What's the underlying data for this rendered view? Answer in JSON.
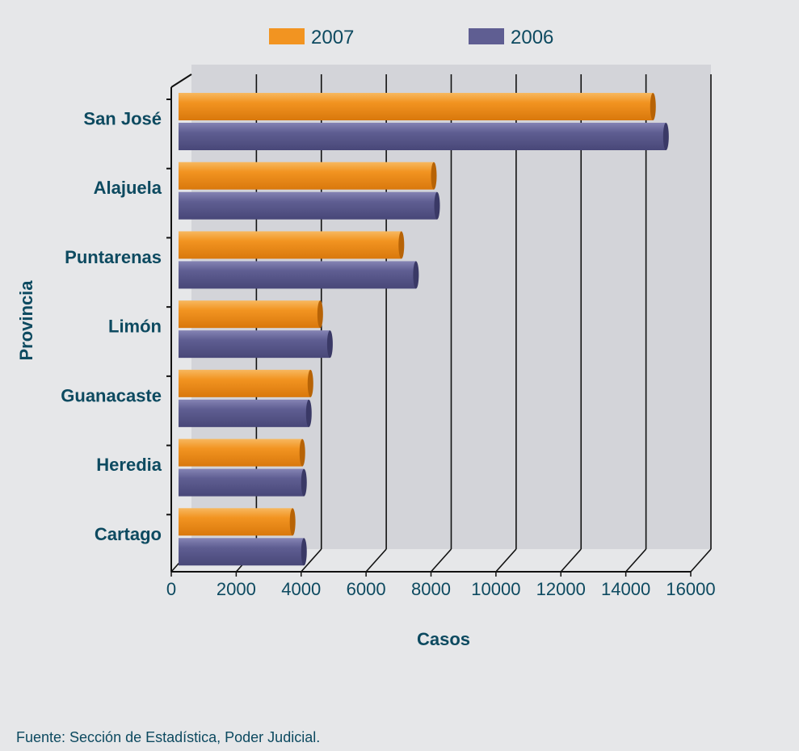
{
  "chart_data": {
    "type": "bar",
    "orientation": "horizontal",
    "categories": [
      "San José",
      "Alajuela",
      "Puntarenas",
      "Limón",
      "Guanacaste",
      "Heredia",
      "Cartago"
    ],
    "series": [
      {
        "name": "2007",
        "color": "#f29421",
        "values": [
          14700,
          7950,
          6950,
          4450,
          4150,
          3900,
          3600
        ]
      },
      {
        "name": "2006",
        "color": "#5f5e92",
        "values": [
          15100,
          8050,
          7400,
          4750,
          4100,
          3950,
          3950
        ]
      }
    ],
    "xlabel": "Casos",
    "ylabel": "Provincia",
    "xlim": [
      0,
      16000
    ],
    "xticks": [
      "0",
      "2000",
      "4000",
      "6000",
      "8000",
      "10000",
      "12000",
      "14000",
      "16000"
    ],
    "grid": true,
    "legend_position": "top"
  },
  "source_note": "Fuente: Sección de Estadística, Poder Judicial."
}
